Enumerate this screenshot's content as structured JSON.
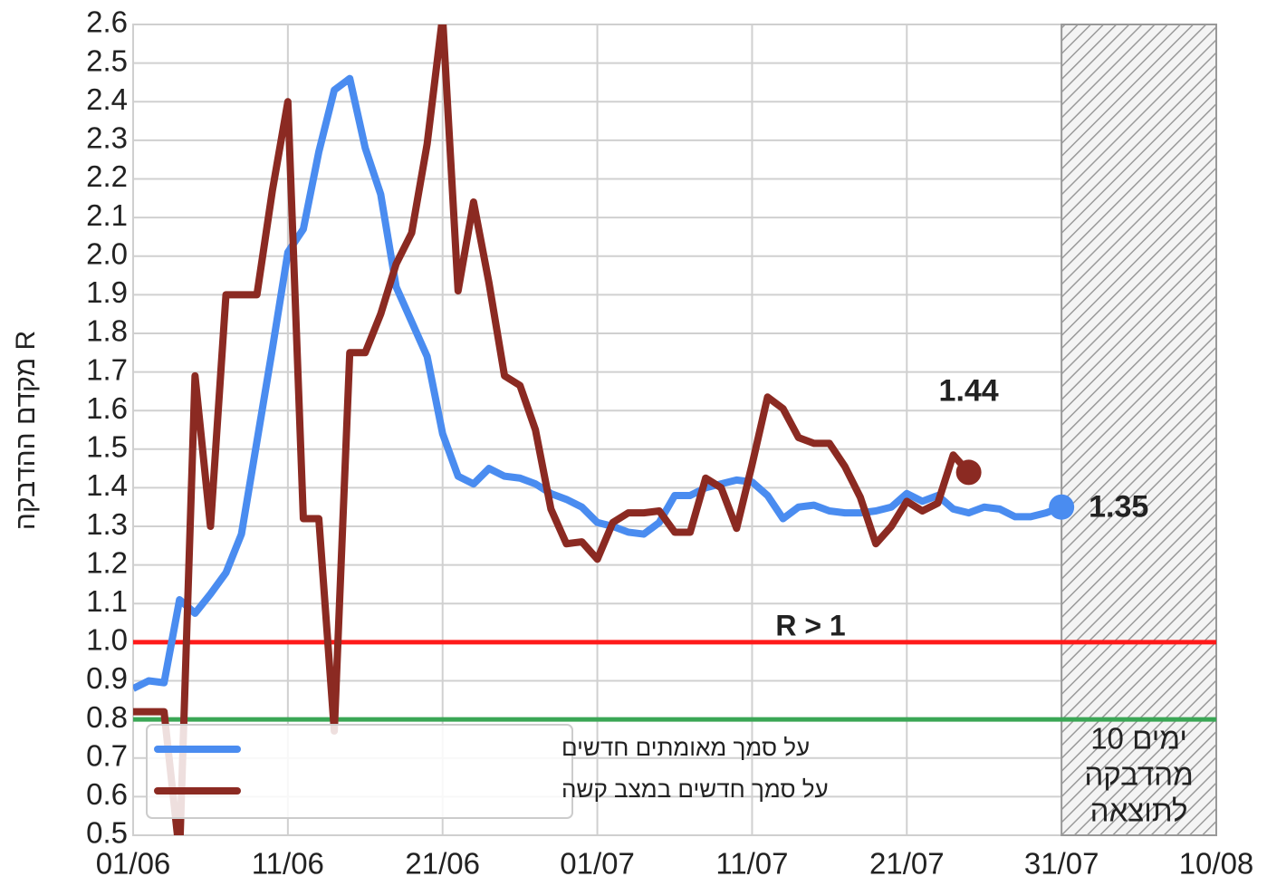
{
  "chart_data": {
    "type": "line",
    "ylabel": "מקדם ההדבקה R",
    "x": [
      "01/06",
      "02/06",
      "03/06",
      "04/06",
      "05/06",
      "06/06",
      "07/06",
      "08/06",
      "09/06",
      "10/06",
      "11/06",
      "12/06",
      "13/06",
      "14/06",
      "15/06",
      "16/06",
      "17/06",
      "18/06",
      "19/06",
      "20/06",
      "21/06",
      "22/06",
      "23/06",
      "24/06",
      "25/06",
      "26/06",
      "27/06",
      "28/06",
      "29/06",
      "30/06",
      "01/07",
      "02/07",
      "03/07",
      "04/07",
      "05/07",
      "06/07",
      "07/07",
      "08/07",
      "09/07",
      "10/07",
      "11/07",
      "12/07",
      "13/07",
      "14/07",
      "15/07",
      "16/07",
      "17/07",
      "18/07",
      "19/07",
      "20/07",
      "21/07",
      "22/07",
      "23/07",
      "24/07",
      "25/07",
      "26/07",
      "27/07",
      "28/07",
      "29/07",
      "30/07",
      "31/07"
    ],
    "series": [
      {
        "name": "על סמך מאומתים חדשים",
        "color": "#4a8cf0",
        "end_label": "1.35",
        "values": [
          0.88,
          0.9,
          0.895,
          1.11,
          1.075,
          1.125,
          1.18,
          1.28,
          1.52,
          1.76,
          2.01,
          2.07,
          2.27,
          2.43,
          2.46,
          2.28,
          2.16,
          1.92,
          1.83,
          1.74,
          1.54,
          1.43,
          1.41,
          1.45,
          1.43,
          1.425,
          1.41,
          1.385,
          1.37,
          1.35,
          1.31,
          1.3,
          1.285,
          1.28,
          1.31,
          1.38,
          1.38,
          1.4,
          1.41,
          1.42,
          1.415,
          1.38,
          1.32,
          1.35,
          1.355,
          1.34,
          1.335,
          1.335,
          1.34,
          1.35,
          1.385,
          1.365,
          1.38,
          1.345,
          1.335,
          1.35,
          1.345,
          1.325,
          1.325,
          1.335,
          1.35
        ]
      },
      {
        "name": "על סמך חדשים במצב קשה",
        "color": "#8b2a22",
        "end_label": "1.44",
        "values": [
          0.82,
          0.82,
          0.82,
          0.45,
          1.69,
          1.3,
          1.9,
          1.9,
          1.9,
          2.17,
          2.4,
          1.32,
          1.32,
          0.77,
          1.75,
          1.75,
          1.85,
          1.98,
          2.06,
          2.29,
          2.62,
          1.91,
          2.14,
          1.93,
          1.69,
          1.665,
          1.55,
          1.345,
          1.255,
          1.26,
          1.215,
          1.31,
          1.335,
          1.335,
          1.34,
          1.285,
          1.285,
          1.425,
          1.4,
          1.295,
          1.46,
          1.635,
          1.605,
          1.53,
          1.515,
          1.515,
          1.455,
          1.375,
          1.255,
          1.3,
          1.365,
          1.34,
          1.36,
          1.485,
          1.44,
          null,
          null,
          null,
          null,
          null,
          null
        ]
      }
    ],
    "hlines": [
      {
        "value": 1.0,
        "color": "#ff1a1a",
        "label": "R > 1"
      },
      {
        "value": 0.8,
        "color": "#3aa655"
      }
    ],
    "shaded": {
      "from": "31/07",
      "to": "10/08",
      "label": [
        "10 ימים",
        "מהדבקה",
        "לתוצאה"
      ]
    },
    "xlim": [
      "01/06",
      "10/08"
    ],
    "xticks": [
      "01/06",
      "11/06",
      "21/06",
      "01/07",
      "11/07",
      "21/07",
      "31/07",
      "10/08"
    ],
    "ylim": [
      0.5,
      2.6
    ],
    "yticks": [
      {
        "value": 0.5,
        "label": "0.5"
      },
      {
        "value": 0.6,
        "label": "0.6"
      },
      {
        "value": 0.7,
        "label": "0.7"
      },
      {
        "value": 0.8,
        "label": "0.8"
      },
      {
        "value": 0.9,
        "label": "0.9"
      },
      {
        "value": 1.0,
        "label": "1.0"
      },
      {
        "value": 1.1,
        "label": "1.1"
      },
      {
        "value": 1.2,
        "label": "1.2"
      },
      {
        "value": 1.3,
        "label": "1.3"
      },
      {
        "value": 1.4,
        "label": "1.4"
      },
      {
        "value": 1.5,
        "label": "1.5"
      },
      {
        "value": 1.6,
        "label": "1.6"
      },
      {
        "value": 1.7,
        "label": "1.7"
      },
      {
        "value": 1.8,
        "label": "1.8"
      },
      {
        "value": 1.9,
        "label": "1.9"
      },
      {
        "value": 2.0,
        "label": "2.0"
      },
      {
        "value": 2.1,
        "label": "2.1"
      },
      {
        "value": 2.2,
        "label": "2.2"
      },
      {
        "value": 2.3,
        "label": "2.3"
      },
      {
        "value": 2.4,
        "label": "2.4"
      },
      {
        "value": 2.5,
        "label": "2.5"
      },
      {
        "value": 2.6,
        "label": "2.6"
      }
    ],
    "grid": true,
    "legend": "lower left"
  }
}
